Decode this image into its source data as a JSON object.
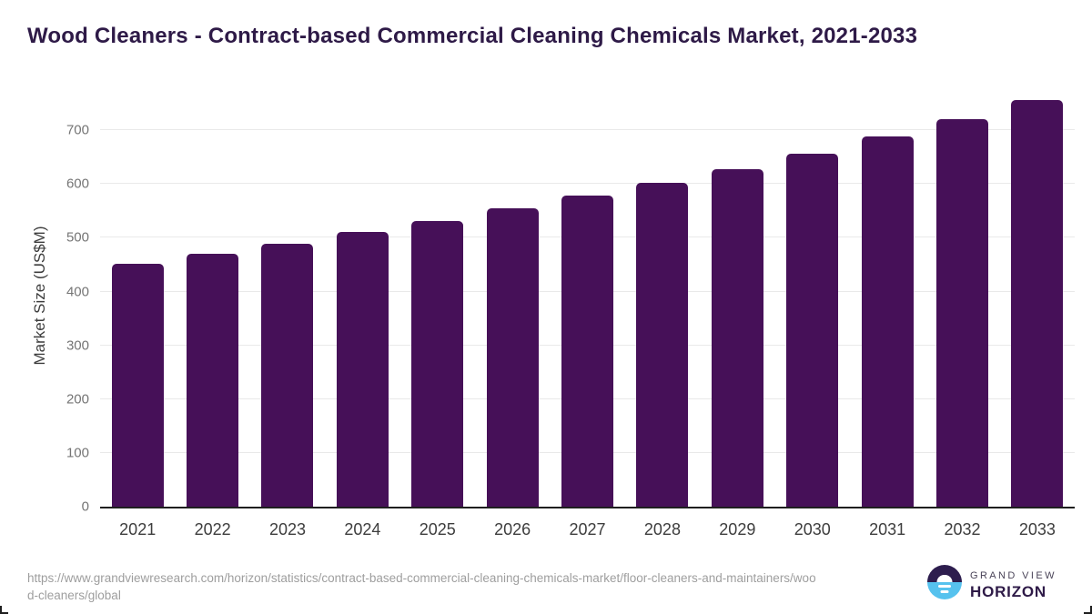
{
  "title": "Wood Cleaners - Contract-based Commercial Cleaning Chemicals Market, 2021-2033",
  "chart_data": {
    "type": "bar",
    "title": "Wood Cleaners - Contract-based Commercial Cleaning Chemicals Market, 2021-2033",
    "categories": [
      "2021",
      "2022",
      "2023",
      "2024",
      "2025",
      "2026",
      "2027",
      "2028",
      "2029",
      "2030",
      "2031",
      "2032",
      "2033"
    ],
    "values": [
      452,
      470,
      489,
      511,
      532,
      555,
      579,
      602,
      628,
      656,
      688,
      720,
      756
    ],
    "xlabel": "",
    "ylabel": "Market Size (US$M)",
    "yticks": [
      0,
      100,
      200,
      300,
      400,
      500,
      600,
      700
    ],
    "ylim": [
      0,
      790
    ],
    "grid": true,
    "legend": false,
    "bar_color": "#461058"
  },
  "colors": {
    "title_text": "#2e1a47",
    "bar": "#461058",
    "gridline": "#e9e9e9",
    "axis_line": "#1f1f1f",
    "y_tick_text": "#757575",
    "x_tick_text": "#3d3d3d",
    "source_text": "#9e9e9e",
    "logo_dark": "#2d1d4e",
    "logo_blue": "#56c2ee"
  },
  "footer": {
    "source_url": "https://www.grandviewresearch.com/horizon/statistics/contract-based-commercial-cleaning-chemicals-market/floor-cleaners-and-maintainers/wood-cleaners/global",
    "logo": {
      "brand_top": "GRAND VIEW",
      "brand_bottom": "HORIZON"
    }
  }
}
